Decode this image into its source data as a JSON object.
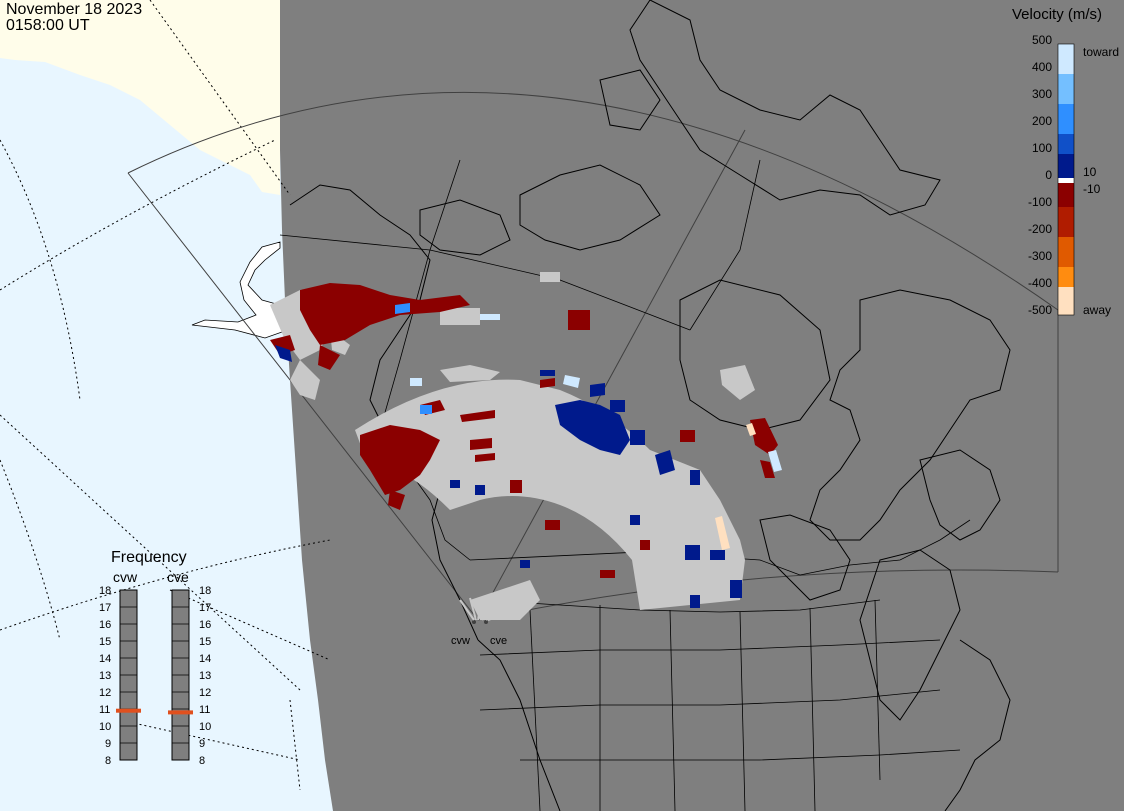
{
  "header": {
    "date": "November 18 2023",
    "time": "0158:00 UT"
  },
  "velocity_scale": {
    "title": "Velocity (m/s)",
    "ticks": [
      "500",
      "400",
      "300",
      "200",
      "100",
      "0",
      "-100",
      "-200",
      "-300",
      "-400",
      "-500"
    ],
    "side_labels": [
      "toward",
      "10",
      "-10",
      "away"
    ],
    "colors": {
      "toward_strong": "#cfe9ff",
      "toward_mid": "#2f8fff",
      "toward_weak": "#001a8c",
      "ground": "#c8c8c8",
      "away_weak": "#8b0000",
      "away_mid": "#e05a00",
      "away_strong": "#ffe0c0"
    }
  },
  "frequency_panel": {
    "title": "Frequency",
    "radars": [
      {
        "name": "cvw",
        "frequency_mhz": 10.9
      },
      {
        "name": "cve",
        "frequency_mhz": 10.8
      }
    ],
    "ticks": [
      "18",
      "17",
      "16",
      "15",
      "14",
      "13",
      "12",
      "11",
      "10",
      "9",
      "8"
    ],
    "marker_color": "#e0501e"
  },
  "sites": [
    "cvw",
    "cve"
  ],
  "map_colors": {
    "land": "#7f7f7f",
    "ocean": "#e8f6ff",
    "unshaded_land": "#fffdea",
    "ground_scatter": "#c8c8c8"
  }
}
